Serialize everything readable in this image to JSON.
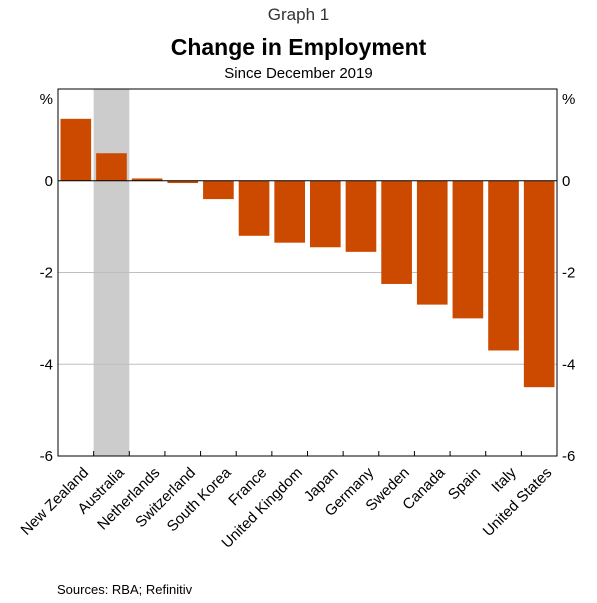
{
  "header": {
    "graph_number": "Graph 1",
    "title": "Change in Employment",
    "subtitle": "Since December 2019"
  },
  "footer": {
    "source": "Sources: RBA; Refinitiv"
  },
  "chart_data": {
    "type": "bar",
    "title": "Change in Employment",
    "subtitle": "Since December 2019",
    "unit_left": "%",
    "unit_right": "%",
    "categories": [
      "New Zealand",
      "Australia",
      "Netherlands",
      "Switzerland",
      "South Korea",
      "France",
      "United Kingdom",
      "Japan",
      "Germany",
      "Sweden",
      "Canada",
      "Spain",
      "Italy",
      "United States"
    ],
    "values": [
      1.35,
      0.6,
      0.05,
      -0.05,
      -0.4,
      -1.2,
      -1.35,
      -1.45,
      -1.55,
      -2.25,
      -2.7,
      -3.0,
      -3.7,
      -4.5
    ],
    "ylim": [
      -6,
      2
    ],
    "yticks": [
      0,
      -2,
      -4,
      -6
    ],
    "grid": true,
    "highlight_category": "Australia",
    "colors": {
      "bar": "#cc4a00",
      "highlight": "#cccccc",
      "grid": "#bfbfbf",
      "axis": "#000000"
    }
  }
}
